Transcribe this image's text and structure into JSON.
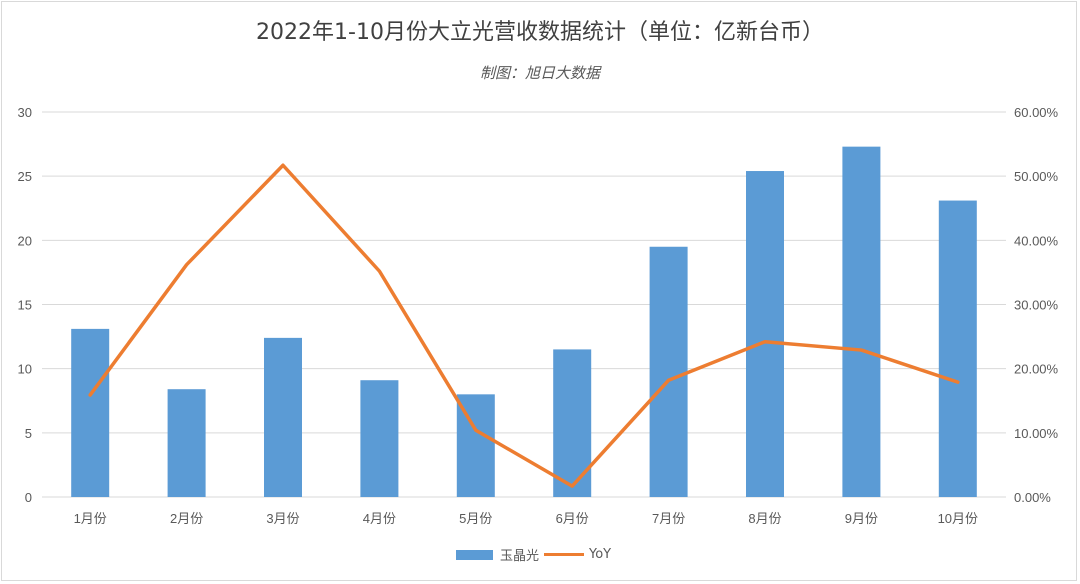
{
  "chart_data": {
    "type": "bar+line",
    "title": "2022年1-10月份大立光营收数据统计（单位：亿新台币）",
    "subtitle": "制图：旭日大数据",
    "categories": [
      "1月份",
      "2月份",
      "3月份",
      "4月份",
      "5月份",
      "6月份",
      "7月份",
      "8月份",
      "9月份",
      "10月份"
    ],
    "series": [
      {
        "name": "玉晶光",
        "type": "bar",
        "axis": "left",
        "color": "#5b9bd5",
        "values": [
          13.1,
          8.4,
          12.4,
          9.1,
          8.0,
          11.5,
          19.5,
          25.4,
          27.3,
          23.1
        ]
      },
      {
        "name": "YoY",
        "type": "line",
        "axis": "right",
        "color": "#ed7d31",
        "values": [
          0.159,
          0.362,
          0.517,
          0.352,
          0.104,
          0.017,
          0.182,
          0.242,
          0.229,
          0.179
        ]
      }
    ],
    "left_axis": {
      "ylim": [
        0,
        30
      ],
      "ticks": [
        "0",
        "5",
        "10",
        "15",
        "20",
        "25",
        "30"
      ]
    },
    "right_axis": {
      "ylim": [
        0,
        0.6
      ],
      "ticks": [
        "0.00%",
        "10.00%",
        "20.00%",
        "30.00%",
        "40.00%",
        "50.00%",
        "60.00%"
      ]
    },
    "grid": true,
    "legend_position": "bottom"
  }
}
